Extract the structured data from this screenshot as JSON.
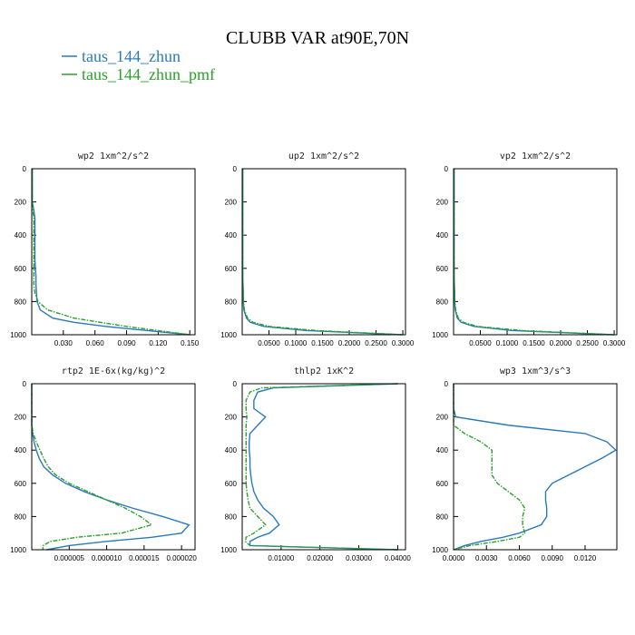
{
  "title": "CLUBB VAR at90E,70N",
  "chart_data": [
    {
      "type": "line",
      "title": "wp2  1xm^2/s^2",
      "y": [
        0,
        25,
        50,
        100,
        150,
        200,
        250,
        300,
        350,
        400,
        450,
        500,
        550,
        600,
        650,
        700,
        750,
        800,
        850,
        900,
        925,
        950,
        975,
        1000
      ],
      "series": [
        {
          "name": "taus_144_zhun",
          "color": "#2a7ab9",
          "values": [
            0.0005,
            0.0005,
            0.0005,
            0.0005,
            0.0005,
            0.0005,
            0.002,
            0.003,
            0.003,
            0.003,
            0.003,
            0.003,
            0.003,
            0.0035,
            0.004,
            0.004,
            0.0045,
            0.005,
            0.008,
            0.02,
            0.04,
            0.07,
            0.11,
            0.15
          ]
        },
        {
          "name": "taus_144_zhun_pmf",
          "color": "#2ca02c",
          "values": [
            0.0005,
            0.0005,
            0.0005,
            0.0005,
            0.0005,
            0.0005,
            0.001,
            0.002,
            0.002,
            0.002,
            0.002,
            0.002,
            0.002,
            0.002,
            0.002,
            0.002,
            0.003,
            0.006,
            0.015,
            0.04,
            0.065,
            0.09,
            0.12,
            0.15
          ]
        }
      ],
      "xlim": [
        0,
        0.155
      ],
      "xticks": [
        {
          "value": 0.03,
          "label": "0.030"
        },
        {
          "value": 0.06,
          "label": "0.060"
        },
        {
          "value": 0.09,
          "label": "0.090"
        },
        {
          "value": 0.12,
          "label": "0.120"
        },
        {
          "value": 0.15,
          "label": "0.150"
        }
      ],
      "ylim": [
        1000,
        0
      ],
      "yticks": [
        0,
        200,
        400,
        600,
        800,
        1000
      ]
    },
    {
      "type": "line",
      "title": "up2  1xm^2/s^2",
      "y": [
        0,
        25,
        50,
        100,
        150,
        200,
        250,
        300,
        350,
        400,
        450,
        500,
        550,
        600,
        650,
        700,
        750,
        800,
        850,
        900,
        925,
        950,
        975,
        1000
      ],
      "series": [
        {
          "name": "taus_144_zhun",
          "color": "#2a7ab9",
          "values": [
            0.001,
            0.001,
            0.001,
            0.001,
            0.001,
            0.001,
            0.001,
            0.001,
            0.001,
            0.001,
            0.001,
            0.001,
            0.001,
            0.001,
            0.001,
            0.0015,
            0.002,
            0.002,
            0.003,
            0.008,
            0.015,
            0.04,
            0.12,
            0.3
          ]
        },
        {
          "name": "taus_144_zhun_pmf",
          "color": "#2ca02c",
          "values": [
            0.001,
            0.001,
            0.001,
            0.001,
            0.001,
            0.001,
            0.001,
            0.001,
            0.001,
            0.001,
            0.001,
            0.001,
            0.001,
            0.001,
            0.001,
            0.0015,
            0.002,
            0.0025,
            0.004,
            0.01,
            0.02,
            0.05,
            0.14,
            0.3
          ]
        }
      ],
      "xlim": [
        0,
        0.305
      ],
      "xticks": [
        {
          "value": 0.05,
          "label": "0.0500"
        },
        {
          "value": 0.1,
          "label": "0.1000"
        },
        {
          "value": 0.15,
          "label": "0.1500"
        },
        {
          "value": 0.2,
          "label": "0.2000"
        },
        {
          "value": 0.25,
          "label": "0.2500"
        },
        {
          "value": 0.3,
          "label": "0.3000"
        }
      ],
      "ylim": [
        1000,
        0
      ],
      "yticks": [
        0,
        200,
        400,
        600,
        800,
        1000
      ]
    },
    {
      "type": "line",
      "title": "vp2  1xm^2/s^2",
      "y": [
        0,
        25,
        50,
        100,
        150,
        200,
        250,
        300,
        350,
        400,
        450,
        500,
        550,
        600,
        650,
        700,
        750,
        800,
        850,
        900,
        925,
        950,
        975,
        1000
      ],
      "series": [
        {
          "name": "taus_144_zhun",
          "color": "#2a7ab9",
          "values": [
            0.001,
            0.001,
            0.001,
            0.001,
            0.001,
            0.001,
            0.001,
            0.001,
            0.001,
            0.001,
            0.001,
            0.001,
            0.001,
            0.001,
            0.001,
            0.0015,
            0.002,
            0.002,
            0.003,
            0.007,
            0.014,
            0.038,
            0.11,
            0.3
          ]
        },
        {
          "name": "taus_144_zhun_pmf",
          "color": "#2ca02c",
          "values": [
            0.001,
            0.001,
            0.001,
            0.001,
            0.001,
            0.001,
            0.001,
            0.001,
            0.001,
            0.001,
            0.001,
            0.001,
            0.001,
            0.001,
            0.001,
            0.0015,
            0.002,
            0.0025,
            0.004,
            0.009,
            0.018,
            0.045,
            0.13,
            0.3
          ]
        }
      ],
      "xlim": [
        0,
        0.305
      ],
      "xticks": [
        {
          "value": 0.05,
          "label": "0.0500"
        },
        {
          "value": 0.1,
          "label": "0.1000"
        },
        {
          "value": 0.15,
          "label": "0.1500"
        },
        {
          "value": 0.2,
          "label": "0.2000"
        },
        {
          "value": 0.25,
          "label": "0.2500"
        },
        {
          "value": 0.3,
          "label": "0.3000"
        }
      ],
      "ylim": [
        1000,
        0
      ],
      "yticks": [
        0,
        200,
        400,
        600,
        800,
        1000
      ]
    },
    {
      "type": "line",
      "title": "rtp2  1E-6x(kg/kg)^2",
      "y": [
        0,
        25,
        50,
        100,
        150,
        200,
        250,
        300,
        350,
        400,
        450,
        500,
        550,
        600,
        650,
        700,
        750,
        800,
        850,
        900,
        925,
        950,
        975,
        1000
      ],
      "series": [
        {
          "name": "taus_144_zhun",
          "color": "#2a7ab9",
          "values": [
            0,
            0,
            0,
            0,
            0,
            0,
            0,
            1e-07,
            3e-07,
            6e-07,
            1e-06,
            1.6e-06,
            2.8e-06,
            4.5e-06,
            7e-06,
            1e-05,
            1.35e-05,
            1.75e-05,
            2.1e-05,
            2e-05,
            1.6e-05,
            1e-05,
            5e-06,
            2e-06
          ]
        },
        {
          "name": "taus_144_zhun_pmf",
          "color": "#2ca02c",
          "values": [
            0,
            0,
            0,
            0,
            0,
            0,
            0,
            2e-07,
            6e-07,
            1.1e-06,
            1.6e-06,
            2.2e-06,
            3.2e-06,
            5e-06,
            7.5e-06,
            1e-05,
            1.25e-05,
            1.45e-05,
            1.6e-05,
            1.2e-05,
            6e-06,
            2.5e-06,
            1.5e-06,
            1.5e-06
          ]
        }
      ],
      "xlim": [
        0,
        2.18e-05
      ],
      "xticks": [
        {
          "value": 5e-06,
          "label": "0.000005"
        },
        {
          "value": 1e-05,
          "label": "0.000010"
        },
        {
          "value": 1.5e-05,
          "label": "0.000015"
        },
        {
          "value": 2e-05,
          "label": "0.000020"
        }
      ],
      "ylim": [
        1000,
        0
      ],
      "yticks": [
        0,
        200,
        400,
        600,
        800,
        1000
      ]
    },
    {
      "type": "line",
      "title": "thlp2  1xK^2",
      "y": [
        0,
        25,
        50,
        100,
        150,
        200,
        250,
        300,
        350,
        400,
        450,
        500,
        550,
        600,
        650,
        700,
        750,
        800,
        850,
        900,
        925,
        950,
        975,
        1000
      ],
      "series": [
        {
          "name": "taus_144_zhun",
          "color": "#2a7ab9",
          "values": [
            0.04,
            0.008,
            0.004,
            0.003,
            0.003,
            0.006,
            0.004,
            0.002,
            0.0018,
            0.0018,
            0.002,
            0.002,
            0.0022,
            0.0025,
            0.003,
            0.004,
            0.0055,
            0.008,
            0.0095,
            0.007,
            0.004,
            0.002,
            0.002,
            0.04
          ]
        },
        {
          "name": "taus_144_zhun_pmf",
          "color": "#2ca02c",
          "values": [
            0.04,
            0.005,
            0.002,
            0.001,
            0.001,
            0.0012,
            0.001,
            0.001,
            0.001,
            0.001,
            0.001,
            0.001,
            0.001,
            0.001,
            0.0012,
            0.0015,
            0.002,
            0.004,
            0.006,
            0.003,
            0.001,
            0.0008,
            0.002,
            0.04
          ]
        }
      ],
      "xlim": [
        0,
        0.042
      ],
      "xticks": [
        {
          "value": 0.01,
          "label": "0.01000"
        },
        {
          "value": 0.02,
          "label": "0.02000"
        },
        {
          "value": 0.03,
          "label": "0.03000"
        },
        {
          "value": 0.04,
          "label": "0.04000"
        }
      ],
      "ylim": [
        1000,
        0
      ],
      "yticks": [
        0,
        200,
        400,
        600,
        800,
        1000
      ]
    },
    {
      "type": "line",
      "title": "wp3  1xm^3/s^3",
      "y": [
        0,
        25,
        50,
        100,
        150,
        200,
        250,
        300,
        350,
        400,
        450,
        500,
        550,
        600,
        650,
        700,
        750,
        800,
        850,
        900,
        925,
        950,
        975,
        1000
      ],
      "series": [
        {
          "name": "taus_144_zhun",
          "color": "#2a7ab9",
          "values": [
            0,
            0,
            0,
            0,
            0,
            0.0002,
            0.005,
            0.012,
            0.014,
            0.0148,
            0.0135,
            0.012,
            0.0105,
            0.009,
            0.0084,
            0.0084,
            0.0085,
            0.0085,
            0.008,
            0.006,
            0.0045,
            0.0025,
            0.001,
            0
          ]
        },
        {
          "name": "taus_144_zhun_pmf",
          "color": "#2ca02c",
          "values": [
            0,
            0,
            0,
            0,
            0,
            0,
            0,
            0.001,
            0.0025,
            0.0035,
            0.0035,
            0.0035,
            0.0035,
            0.004,
            0.005,
            0.006,
            0.0065,
            0.0063,
            0.0063,
            0.0065,
            0.006,
            0.004,
            0.0015,
            0
          ]
        }
      ],
      "xlim": [
        0,
        0.0149
      ],
      "xticks": [
        {
          "value": 0,
          "label": "0.0000"
        },
        {
          "value": 0.003,
          "label": "0.0030"
        },
        {
          "value": 0.006,
          "label": "0.0060"
        },
        {
          "value": 0.009,
          "label": "0.0090"
        },
        {
          "value": 0.012,
          "label": "0.0120"
        }
      ],
      "ylim": [
        1000,
        0
      ],
      "yticks": [
        0,
        200,
        400,
        600,
        800,
        1000
      ]
    }
  ]
}
